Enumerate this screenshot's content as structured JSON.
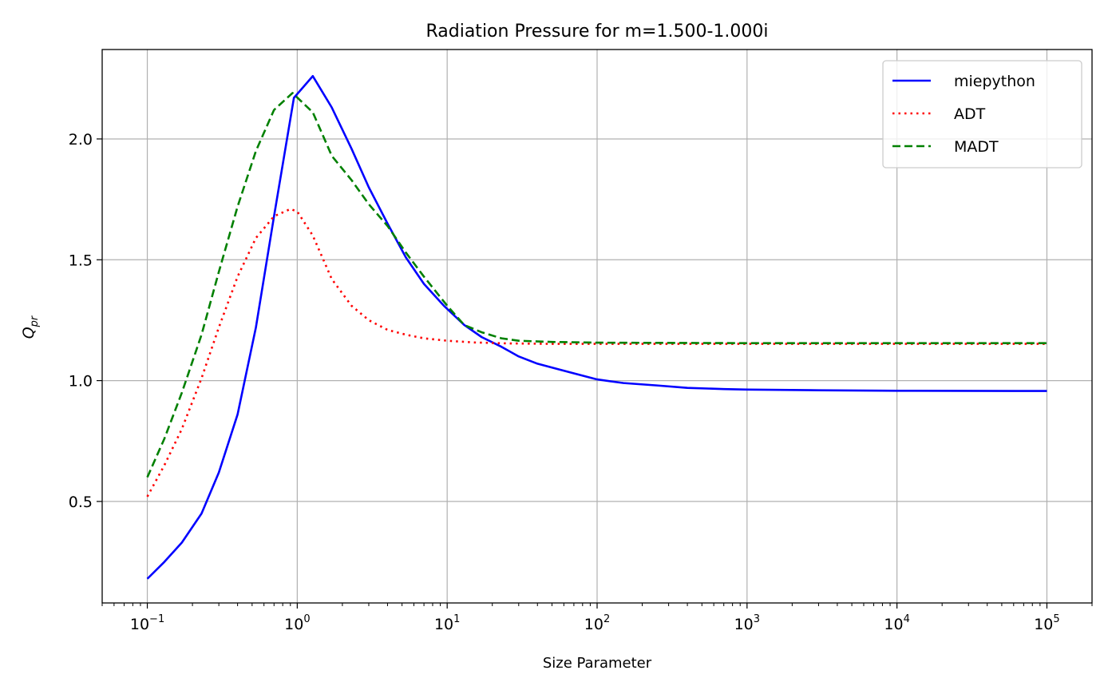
{
  "chart_data": {
    "type": "line",
    "title": "Radiation Pressure for m=1.500-1.000i",
    "xlabel": "Size Parameter",
    "ylabel_main": "Q",
    "ylabel_sub": "pr",
    "xscale": "log",
    "xlim": [
      0.05,
      200000
    ],
    "ylim": [
      0.08,
      2.37
    ],
    "grid": true,
    "legend_position": "top-right",
    "x_ticks": [
      {
        "exp": "−1",
        "value": 0.1
      },
      {
        "exp": "0",
        "value": 1
      },
      {
        "exp": "1",
        "value": 10
      },
      {
        "exp": "2",
        "value": 100
      },
      {
        "exp": "3",
        "value": 1000
      },
      {
        "exp": "4",
        "value": 10000
      },
      {
        "exp": "5",
        "value": 100000
      }
    ],
    "x_tick_base": "10",
    "y_ticks": [
      {
        "label": "0.5",
        "value": 0.5
      },
      {
        "label": "1.0",
        "value": 1.0
      },
      {
        "label": "1.5",
        "value": 1.5
      },
      {
        "label": "2.0",
        "value": 2.0
      }
    ],
    "series": [
      {
        "name": "miepython",
        "color": "#0000ff",
        "dash": "solid",
        "points": [
          [
            0.1,
            0.18
          ],
          [
            0.13,
            0.25
          ],
          [
            0.17,
            0.33
          ],
          [
            0.23,
            0.45
          ],
          [
            0.3,
            0.62
          ],
          [
            0.4,
            0.86
          ],
          [
            0.53,
            1.22
          ],
          [
            0.7,
            1.68
          ],
          [
            0.95,
            2.17
          ],
          [
            1.27,
            2.26
          ],
          [
            1.7,
            2.13
          ],
          [
            2.3,
            1.96
          ],
          [
            3.0,
            1.8
          ],
          [
            4.0,
            1.65
          ],
          [
            5.3,
            1.51
          ],
          [
            7.0,
            1.4
          ],
          [
            9.5,
            1.31
          ],
          [
            13,
            1.23
          ],
          [
            17,
            1.18
          ],
          [
            23,
            1.14
          ],
          [
            30,
            1.1
          ],
          [
            40,
            1.07
          ],
          [
            53,
            1.05
          ],
          [
            70,
            1.03
          ],
          [
            100,
            1.005
          ],
          [
            150,
            0.99
          ],
          [
            250,
            0.98
          ],
          [
            400,
            0.97
          ],
          [
            700,
            0.965
          ],
          [
            1000,
            0.963
          ],
          [
            3000,
            0.96
          ],
          [
            10000,
            0.958
          ],
          [
            100000,
            0.957
          ]
        ]
      },
      {
        "name": "ADT",
        "color": "#ff0000",
        "dash": "dotted",
        "points": [
          [
            0.1,
            0.52
          ],
          [
            0.13,
            0.65
          ],
          [
            0.17,
            0.8
          ],
          [
            0.23,
            1.01
          ],
          [
            0.3,
            1.22
          ],
          [
            0.4,
            1.43
          ],
          [
            0.53,
            1.59
          ],
          [
            0.7,
            1.68
          ],
          [
            0.9,
            1.71
          ],
          [
            1.0,
            1.7
          ],
          [
            1.27,
            1.6
          ],
          [
            1.7,
            1.42
          ],
          [
            2.3,
            1.31
          ],
          [
            3.0,
            1.25
          ],
          [
            4.0,
            1.21
          ],
          [
            5.3,
            1.19
          ],
          [
            7.0,
            1.175
          ],
          [
            10,
            1.165
          ],
          [
            15,
            1.158
          ],
          [
            25,
            1.154
          ],
          [
            50,
            1.152
          ],
          [
            100,
            1.152
          ],
          [
            1000,
            1.152
          ],
          [
            10000,
            1.152
          ],
          [
            100000,
            1.152
          ]
        ]
      },
      {
        "name": "MADT",
        "color": "#008000",
        "dash": "dashed",
        "points": [
          [
            0.1,
            0.6
          ],
          [
            0.13,
            0.76
          ],
          [
            0.17,
            0.95
          ],
          [
            0.23,
            1.19
          ],
          [
            0.3,
            1.45
          ],
          [
            0.4,
            1.72
          ],
          [
            0.53,
            1.95
          ],
          [
            0.7,
            2.12
          ],
          [
            0.93,
            2.19
          ],
          [
            1.27,
            2.11
          ],
          [
            1.7,
            1.93
          ],
          [
            2.3,
            1.83
          ],
          [
            3.0,
            1.73
          ],
          [
            4.0,
            1.64
          ],
          [
            5.3,
            1.53
          ],
          [
            7.0,
            1.43
          ],
          [
            10,
            1.31
          ],
          [
            13,
            1.23
          ],
          [
            17,
            1.2
          ],
          [
            23,
            1.175
          ],
          [
            30,
            1.165
          ],
          [
            50,
            1.16
          ],
          [
            100,
            1.157
          ],
          [
            1000,
            1.155
          ],
          [
            10000,
            1.155
          ],
          [
            100000,
            1.155
          ]
        ]
      }
    ]
  }
}
